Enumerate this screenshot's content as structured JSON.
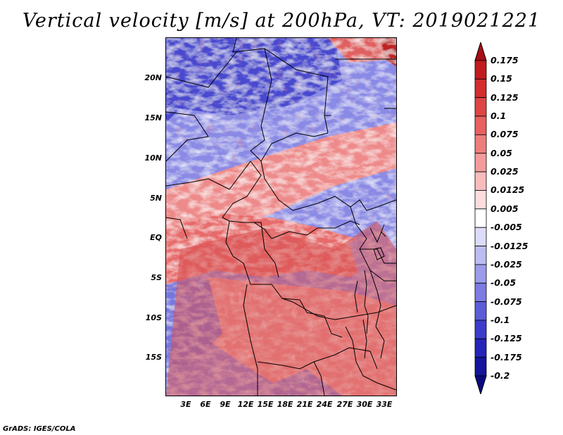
{
  "title": "Vertical velocity [m/s] at 200hPa, VT: 2019021221",
  "credit": "GrADS: IGES/COLA",
  "map": {
    "lat_labels": [
      "20N",
      "15N",
      "10N",
      "5N",
      "EQ",
      "5S",
      "10S",
      "15S"
    ],
    "lon_labels": [
      "3E",
      "6E",
      "9E",
      "12E",
      "15E",
      "18E",
      "21E",
      "24E",
      "27E",
      "30E",
      "33E"
    ],
    "field_style": "blue-red vertical velocity speckle with country borders"
  },
  "colorbar": {
    "labels": [
      "0.175",
      "0.15",
      "0.125",
      "0.1",
      "0.075",
      "0.05",
      "0.025",
      "0.0125",
      "0.005",
      "-0.005",
      "-0.0125",
      "-0.025",
      "-0.05",
      "-0.075",
      "-0.1",
      "-0.125",
      "-0.175",
      "-0.2"
    ],
    "colors": [
      "#a50f15",
      "#c11b1f",
      "#d42d2d",
      "#e04545",
      "#e86060",
      "#ee7e7e",
      "#f49c9c",
      "#f8bcbc",
      "#fcdcdc",
      "#ffffff",
      "#dcdcfa",
      "#bcbcf2",
      "#9c9cea",
      "#7c7ce2",
      "#5c5cd8",
      "#3c3ccc",
      "#2424b8",
      "#14149c",
      "#0a0a80"
    ]
  }
}
